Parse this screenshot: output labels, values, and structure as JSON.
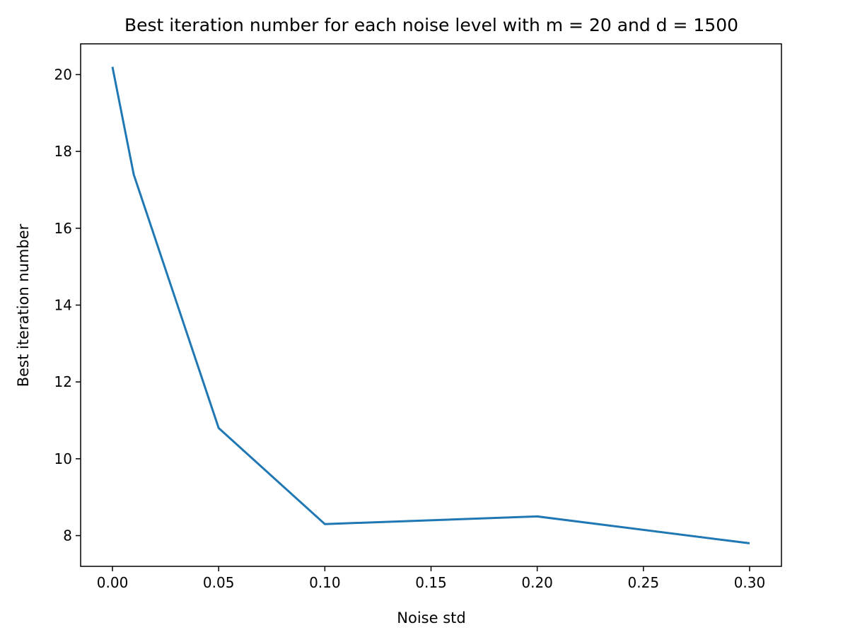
{
  "chart_data": {
    "type": "line",
    "title": "Best iteration number for each noise level with m = 20 and d = 1500",
    "xlabel": "Noise std",
    "ylabel": "Best iteration number",
    "xlim": [
      -0.015,
      0.315
    ],
    "ylim": [
      7.2,
      20.8
    ],
    "xticks": [
      0.0,
      0.05,
      0.1,
      0.15,
      0.2,
      0.25,
      0.3
    ],
    "xtick_labels": [
      "0.00",
      "0.05",
      "0.10",
      "0.15",
      "0.20",
      "0.25",
      "0.30"
    ],
    "yticks": [
      8,
      10,
      12,
      14,
      16,
      18,
      20
    ],
    "ytick_labels": [
      "8",
      "10",
      "12",
      "14",
      "16",
      "18",
      "20"
    ],
    "grid": false,
    "series": [
      {
        "color": "#1f77b4",
        "x": [
          0.0,
          0.01,
          0.05,
          0.1,
          0.2,
          0.3
        ],
        "y": [
          20.2,
          17.4,
          10.8,
          8.3,
          8.5,
          7.8
        ]
      }
    ]
  }
}
